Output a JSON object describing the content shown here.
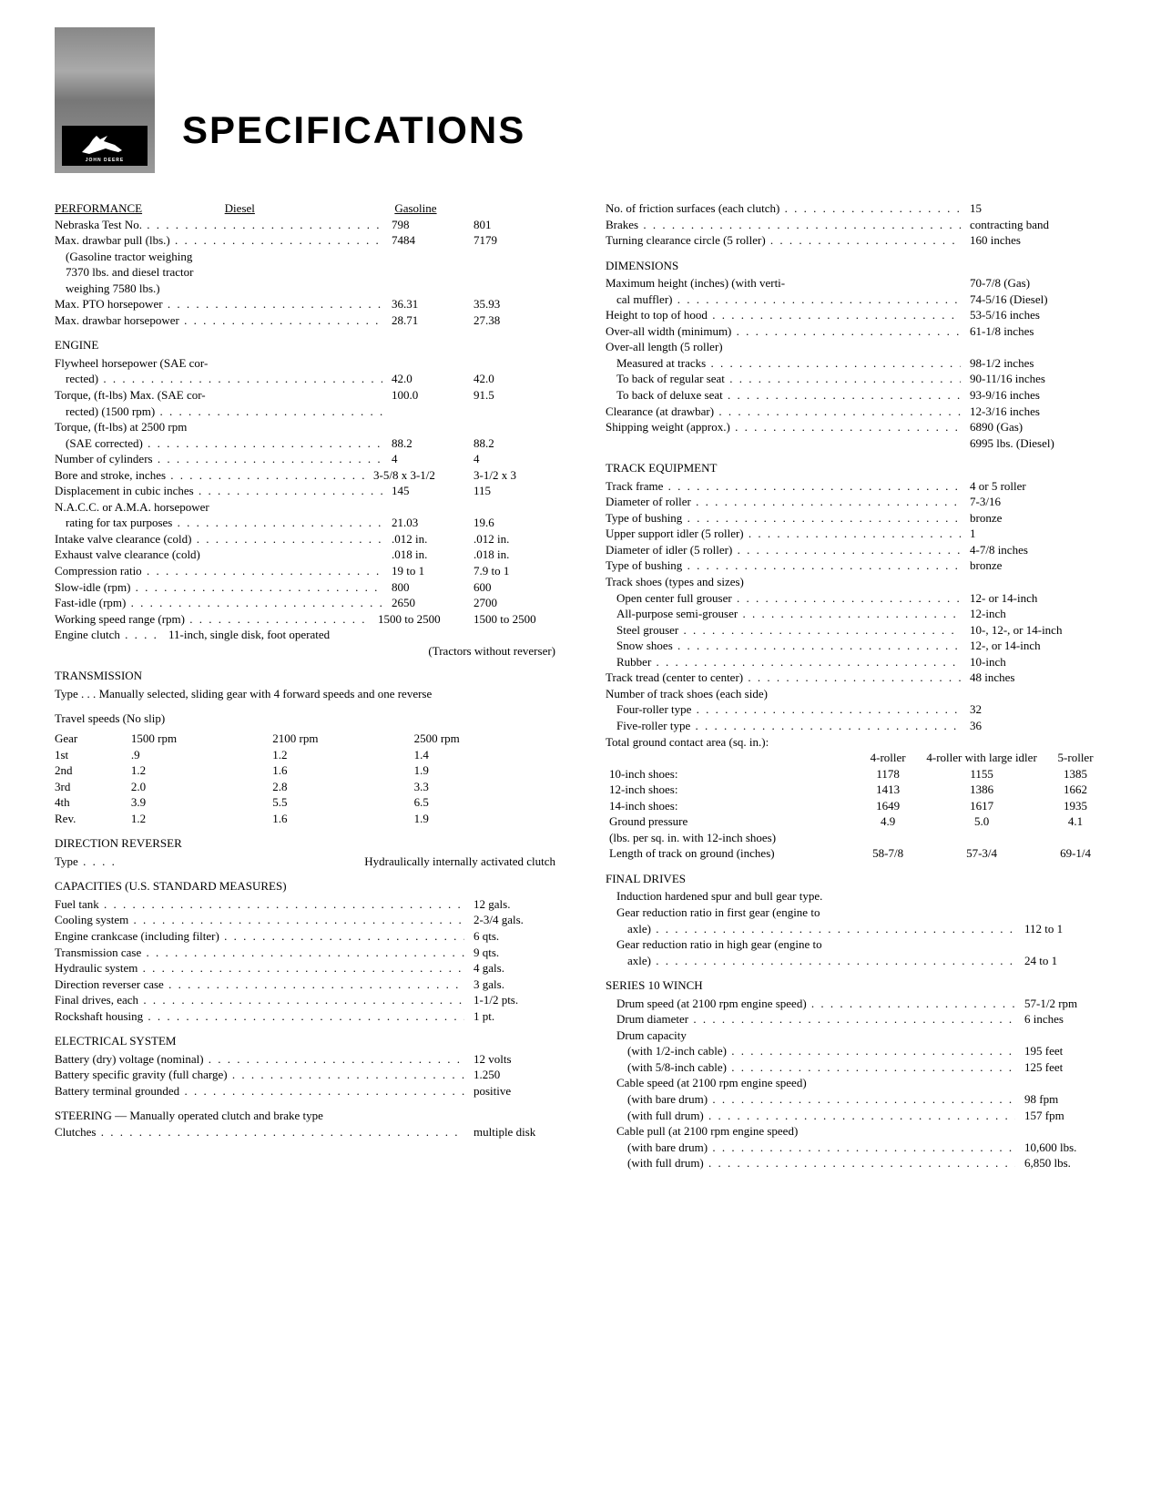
{
  "title": "SPECIFICATIONS",
  "logo_text": "JOHN DEERE",
  "colLeft": {
    "performance": {
      "head": "PERFORMANCE",
      "colA": "Diesel",
      "colB": "Gasoline",
      "rows": [
        {
          "label": "Nebraska Test No.",
          "a": "798",
          "b": "801"
        },
        {
          "label": "Max. drawbar pull (lbs.)",
          "a": "7484",
          "b": "7179"
        }
      ],
      "note1": "(Gasoline tractor weighing",
      "note2": "7370 lbs. and diesel tractor",
      "note3": "weighing 7580 lbs.)",
      "rows2": [
        {
          "label": "Max. PTO horsepower",
          "a": "36.31",
          "b": "35.93"
        },
        {
          "label": "Max. drawbar horsepower",
          "a": "28.71",
          "b": "27.38"
        }
      ]
    },
    "engine": {
      "head": "ENGINE",
      "r1": "Flywheel horsepower (SAE cor-",
      "r1b": {
        "label": "rected)",
        "a": "42.0",
        "b": "42.0"
      },
      "r2": {
        "label": "Torque, (ft-lbs) Max. (SAE cor-",
        "a": "100.0",
        "b": "91.5"
      },
      "r2b": "rected) (1500 rpm)",
      "r3": "Torque, (ft-lbs) at 2500 rpm",
      "r3b": {
        "label": "(SAE corrected)",
        "a": "88.2",
        "b": "88.2"
      },
      "r4": {
        "label": "Number of cylinders",
        "a": "4",
        "b": "4"
      },
      "r5": {
        "label": "Bore and stroke, inches",
        "a": "3-5/8 x 3-1/2",
        "b": "3-1/2 x 3"
      },
      "r6": {
        "label": "Displacement in cubic inches",
        "a": "145",
        "b": "115"
      },
      "r7": "N.A.C.C. or A.M.A. horsepower",
      "r7b": {
        "label": "rating for tax purposes",
        "a": "21.03",
        "b": "19.6"
      },
      "r8": {
        "label": "Intake valve clearance (cold)",
        "a": ".012 in.",
        "b": ".012 in."
      },
      "r9": {
        "label": "Exhaust valve clearance (cold)",
        "a": ".018 in.",
        "b": ".018 in."
      },
      "r10": {
        "label": "Compression ratio",
        "a": "19 to 1",
        "b": "7.9 to 1"
      },
      "r11": {
        "label": "Slow-idle (rpm)",
        "a": "800",
        "b": "600"
      },
      "r12": {
        "label": "Fast-idle (rpm)",
        "a": "2650",
        "b": "2700"
      },
      "r13": {
        "label": "Working speed range (rpm)",
        "a": "1500 to 2500",
        "b": "1500 to 2500"
      },
      "r14": {
        "label": "Engine clutch",
        "a": "11-inch, single disk, foot operated",
        "b": ""
      },
      "r14note": "(Tractors without reverser)"
    },
    "transmission": {
      "head": "TRANSMISSION",
      "typePrefix": "Type  .  .  .",
      "type": "Manually selected, sliding gear with 4 forward speeds and one reverse"
    },
    "speeds": {
      "head": "Travel speeds (No slip)",
      "cols": [
        "Gear",
        "1500 rpm",
        "2100 rpm",
        "2500 rpm"
      ],
      "rows": [
        [
          "1st",
          ".9",
          "1.2",
          "1.4"
        ],
        [
          "2nd",
          "1.2",
          "1.6",
          "1.9"
        ],
        [
          "3rd",
          "2.0",
          "2.8",
          "3.3"
        ],
        [
          "4th",
          "3.9",
          "5.5",
          "6.5"
        ],
        [
          "Rev.",
          "1.2",
          "1.6",
          "1.9"
        ]
      ]
    },
    "reverser": {
      "head": "DIRECTION REVERSER",
      "label": "Type",
      "val": "Hydraulically internally activated clutch"
    },
    "capacities": {
      "head": "CAPACITIES (U.S. Standard Measures)",
      "rows": [
        {
          "label": "Fuel tank",
          "v": "12 gals."
        },
        {
          "label": "Cooling system",
          "v": "2-3/4 gals."
        },
        {
          "label": "Engine crankcase (including filter)",
          "v": "6 qts."
        },
        {
          "label": "Transmission case",
          "v": "9 qts."
        },
        {
          "label": "Hydraulic system",
          "v": "4 gals."
        },
        {
          "label": "Direction reverser case",
          "v": "3 gals."
        },
        {
          "label": "Final drives, each",
          "v": "1-1/2 pts."
        },
        {
          "label": "Rockshaft housing",
          "v": "1 pt."
        }
      ]
    },
    "electrical": {
      "head": "ELECTRICAL SYSTEM",
      "rows": [
        {
          "label": "Battery (dry) voltage (nominal)",
          "v": "12 volts"
        },
        {
          "label": "Battery specific gravity (full charge)",
          "v": "1.250"
        },
        {
          "label": "Battery terminal grounded",
          "v": "positive"
        }
      ]
    },
    "steering": {
      "line1": "STEERING  —  Manually operated clutch and brake type",
      "label": "Clutches",
      "val": "multiple disk"
    }
  },
  "colRight": {
    "top": [
      {
        "label": "No. of friction surfaces (each clutch)",
        "v": "15"
      },
      {
        "label": "Brakes",
        "v": "contracting band"
      },
      {
        "label": "Turning clearance circle (5 roller)",
        "v": "160 inches"
      }
    ],
    "dimensions": {
      "head": "DIMENSIONS",
      "r1": "Maximum height (inches) (with verti-",
      "r1b": {
        "label": "cal muffler)",
        "v": "70-7/8 (Gas)"
      },
      "r1c": "74-5/16 (Diesel)",
      "rows": [
        {
          "label": "Height to top of hood",
          "v": "53-5/16 inches"
        },
        {
          "label": "Over-all width (minimum)",
          "v": "61-1/8 inches"
        }
      ],
      "lenHead": "Over-all length (5 roller)",
      "lenRows": [
        {
          "label": "Measured at tracks",
          "v": "98-1/2 inches"
        },
        {
          "label": "To back of regular seat",
          "v": "90-11/16 inches"
        },
        {
          "label": "To back of deluxe seat",
          "v": "93-9/16 inches"
        }
      ],
      "clearance": {
        "label": "Clearance (at drawbar)",
        "v": "12-3/16 inches"
      },
      "shipping": {
        "label": "Shipping weight (approx.)",
        "v": "6890 (Gas)"
      },
      "shipping2": "6995 lbs. (Diesel)"
    },
    "track": {
      "head": "TRACK EQUIPMENT",
      "rows": [
        {
          "label": "Track frame",
          "v": "4 or 5 roller"
        },
        {
          "label": "Diameter of roller",
          "v": "7-3/16"
        },
        {
          "label": "Type of bushing",
          "v": "bronze"
        },
        {
          "label": "Upper support idler (5 roller)",
          "v": "1"
        },
        {
          "label": "Diameter of idler (5 roller)",
          "v": "4-7/8 inches"
        },
        {
          "label": "Type of bushing",
          "v": "bronze"
        }
      ],
      "shoesHead": "Track shoes (types and sizes)",
      "shoes": [
        {
          "label": "Open center full grouser",
          "v": "12- or 14-inch"
        },
        {
          "label": "All-purpose semi-grouser",
          "v": "12-inch"
        },
        {
          "label": "Steel grouser",
          "v": "10-, 12-, or 14-inch"
        },
        {
          "label": "Snow shoes",
          "v": "12-, or 14-inch"
        },
        {
          "label": "Rubber",
          "v": "10-inch"
        }
      ],
      "tread": {
        "label": "Track tread (center to center)",
        "v": "48 inches"
      },
      "numHead": "Number of track shoes (each side)",
      "numRows": [
        {
          "label": "Four-roller type",
          "v": "32"
        },
        {
          "label": "Five-roller type",
          "v": "36"
        }
      ],
      "groundHead": "Total ground contact area (sq. in.):",
      "groundCols": [
        "",
        "4-roller",
        "4-roller with large idler",
        "5-roller"
      ],
      "groundRows": [
        [
          "10-inch shoes:",
          "1178",
          "1155",
          "1385"
        ],
        [
          "12-inch shoes:",
          "1413",
          "1386",
          "1662"
        ],
        [
          "14-inch shoes:",
          "1649",
          "1617",
          "1935"
        ]
      ],
      "pressureHead": "Ground pressure",
      "pressureSub": "(lbs. per sq. in. with 12-inch shoes)",
      "pressureRow": [
        "",
        "4.9",
        "5.0",
        "4.1"
      ],
      "trackLen": "Length of track on ground (inches)",
      "trackLenRow": [
        "",
        "58-7/8",
        "57-3/4",
        "69-1/4"
      ]
    },
    "final": {
      "head": "FINAL DRIVES",
      "note": "Induction hardened spur and bull gear type.",
      "r1": "Gear reduction ratio in first gear (engine to",
      "r1b": {
        "label": "axle)",
        "v": "112 to 1"
      },
      "r2": "Gear reduction ratio in high gear (engine to",
      "r2b": {
        "label": "axle)",
        "v": "24 to 1"
      }
    },
    "winch": {
      "head": "SERIES 10 WINCH",
      "rows": [
        {
          "label": "Drum speed (at 2100 rpm engine speed)",
          "v": "57-1/2 rpm"
        },
        {
          "label": "Drum diameter",
          "v": "6 inches"
        }
      ],
      "capHead": "Drum capacity",
      "capRows": [
        {
          "label": "(with 1/2-inch cable)",
          "v": "195 feet"
        },
        {
          "label": "(with 5/8-inch cable)",
          "v": "125 feet"
        }
      ],
      "cableHead": "Cable speed (at 2100 rpm engine speed)",
      "cableRows": [
        {
          "label": "(with bare drum)",
          "v": "98 fpm"
        },
        {
          "label": "(with full drum)",
          "v": "157 fpm"
        }
      ],
      "pullHead": "Cable pull (at 2100 rpm engine speed)",
      "pullRows": [
        {
          "label": "(with bare drum)",
          "v": "10,600 lbs."
        },
        {
          "label": "(with full drum)",
          "v": "6,850 lbs."
        }
      ]
    }
  }
}
